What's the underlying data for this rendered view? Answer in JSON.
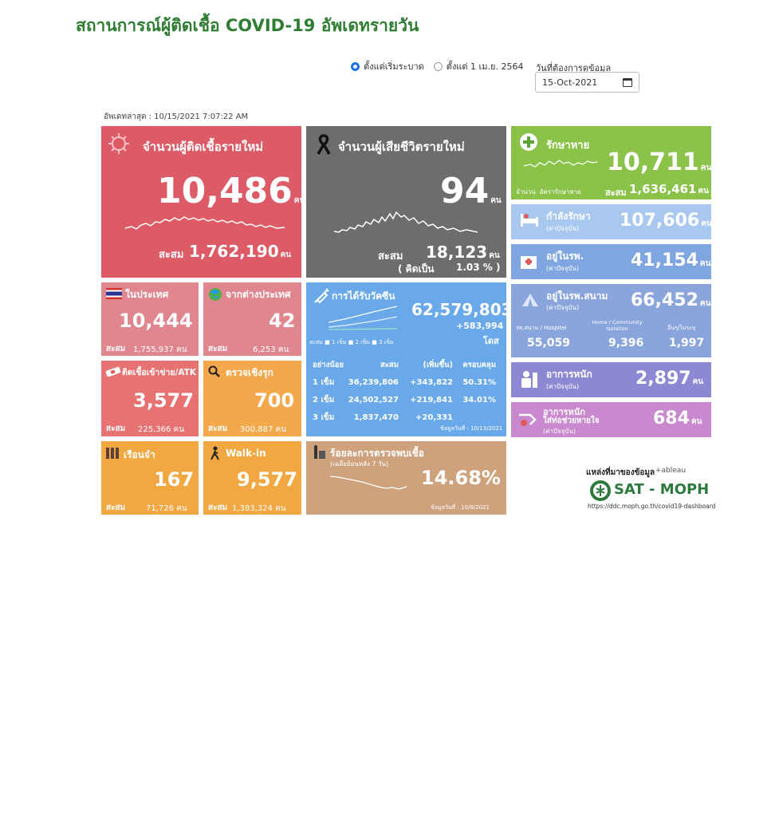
{
  "title": "สถานการณ์ผู้ติดเชื้อ COVID-19 อัพเดทรายวัน",
  "filter": {
    "option1": "ตั้งแต่เริ่มระบาด",
    "option2": "ตั้งแต่ 1 เม.ย. 2564",
    "date_label": "วันที่ต้องการดูข้อมูล",
    "date_value": "15-Oct-2021"
  },
  "updated": "อัพเดทล่าสุด : 10/15/2021 7:07:22 AM",
  "unit": "คน",
  "accum_label": "สะสม",
  "new_cases": {
    "label": "จำนวนผู้ติดเชื้อรายใหม่",
    "value": "10,486",
    "accum": "1,762,190"
  },
  "deaths": {
    "label": "จำนวนผู้เสียชีวิตรายใหม่",
    "value": "94",
    "accum": "18,123",
    "pct_prefix": "( คิดเป็น",
    "pct": "1.03 % )"
  },
  "recovered": {
    "label": "รักษาหาย",
    "value": "10,711",
    "accum": "1,636,461",
    "legend1": "จำนวน",
    "legend2": "อัตรารักษาหาย"
  },
  "treating": {
    "label": "กำลังรักษา",
    "sub": "(ค่าปัจจุบัน)",
    "value": "107,606"
  },
  "hospital": {
    "label": "อยู่ในรพ.",
    "sub": "(ค่าปัจจุบัน)",
    "value": "41,154"
  },
  "field_hospital": {
    "label": "อยู่ในรพ.สนาม",
    "sub": "(ค่าปัจจุบัน)",
    "value": "66,452",
    "col1_label": "รพ.สนาม / Hospitel",
    "col1_value": "55,059",
    "col2_label": "Home / Community Isolation",
    "col2_value": "9,396",
    "col3_label": "อื่นๆ/ไม่ระบุ",
    "col3_value": "1,997"
  },
  "severe": {
    "label": "อาการหนัก",
    "sub": "(ค่าปัจจุบัน)",
    "value": "2,897"
  },
  "ventilator": {
    "label": "อาการหนัก",
    "label2": "ใส่ท่อช่วยหายใจ",
    "sub": "(ค่าปัจจุบัน)",
    "value": "684"
  },
  "domestic": {
    "label": "ในประเทศ",
    "value": "10,444",
    "accum": "1,755,937"
  },
  "imported": {
    "label": "จากต่างประเทศ",
    "value": "42",
    "accum": "6,253"
  },
  "atk": {
    "label": "ติดเชื้อเข้าข่าย/ATK",
    "value": "3,577",
    "accum": "225,366"
  },
  "proactive": {
    "label": "ตรวจเชิงรุก",
    "value": "700",
    "accum": "300,887"
  },
  "prison": {
    "label": "เรือนจำ",
    "value": "167",
    "accum": "71,726"
  },
  "walkin": {
    "label": "Walk-in",
    "value": "9,577",
    "accum": "1,383,324"
  },
  "vaccine": {
    "label": "การได้รับวัคซีน",
    "total": "62,579,803",
    "added": "+583,994",
    "dose_unit": "โดส",
    "legend_prefix": "สะสม",
    "legend1": "1 เข็ม",
    "legend2": "2 เข็ม",
    "legend3": "3 เข็ม",
    "headers": [
      "อย่างน้อย",
      "สะสม",
      "(เพิ่มขึ้น)",
      "ครอบคลุม"
    ],
    "rows": [
      [
        "1 เข็ม",
        "36,239,806",
        "+343,822",
        "50.31%"
      ],
      [
        "2 เข็ม",
        "24,502,527",
        "+219,841",
        "34.01%"
      ],
      [
        "3 เข็ม",
        "1,837,470",
        "+20,331",
        ""
      ]
    ],
    "data_date": "ข้อมูลวันที่ : 10/13/2021"
  },
  "positivity": {
    "label": "ร้อยละการตรวจพบเชื้อ",
    "sub": "(เฉลี่ยย้อนหลัง 7 วัน)",
    "value": "14.68%",
    "data_date": "ข้อมูลวันที่ : 10/8/2021"
  },
  "source": {
    "label": "แหล่งที่มาของข้อมูล",
    "tableau": "+ableau",
    "org": "SAT - MOPH",
    "url": "https://ddc.moph.go.th/covid19-dashboard"
  },
  "colors": {
    "title": "#2e7d32",
    "new_cases": "#dc5b67",
    "deaths": "#6d6d6d",
    "recovered": "#8bc34a",
    "vaccine": "#6aa9e9"
  }
}
